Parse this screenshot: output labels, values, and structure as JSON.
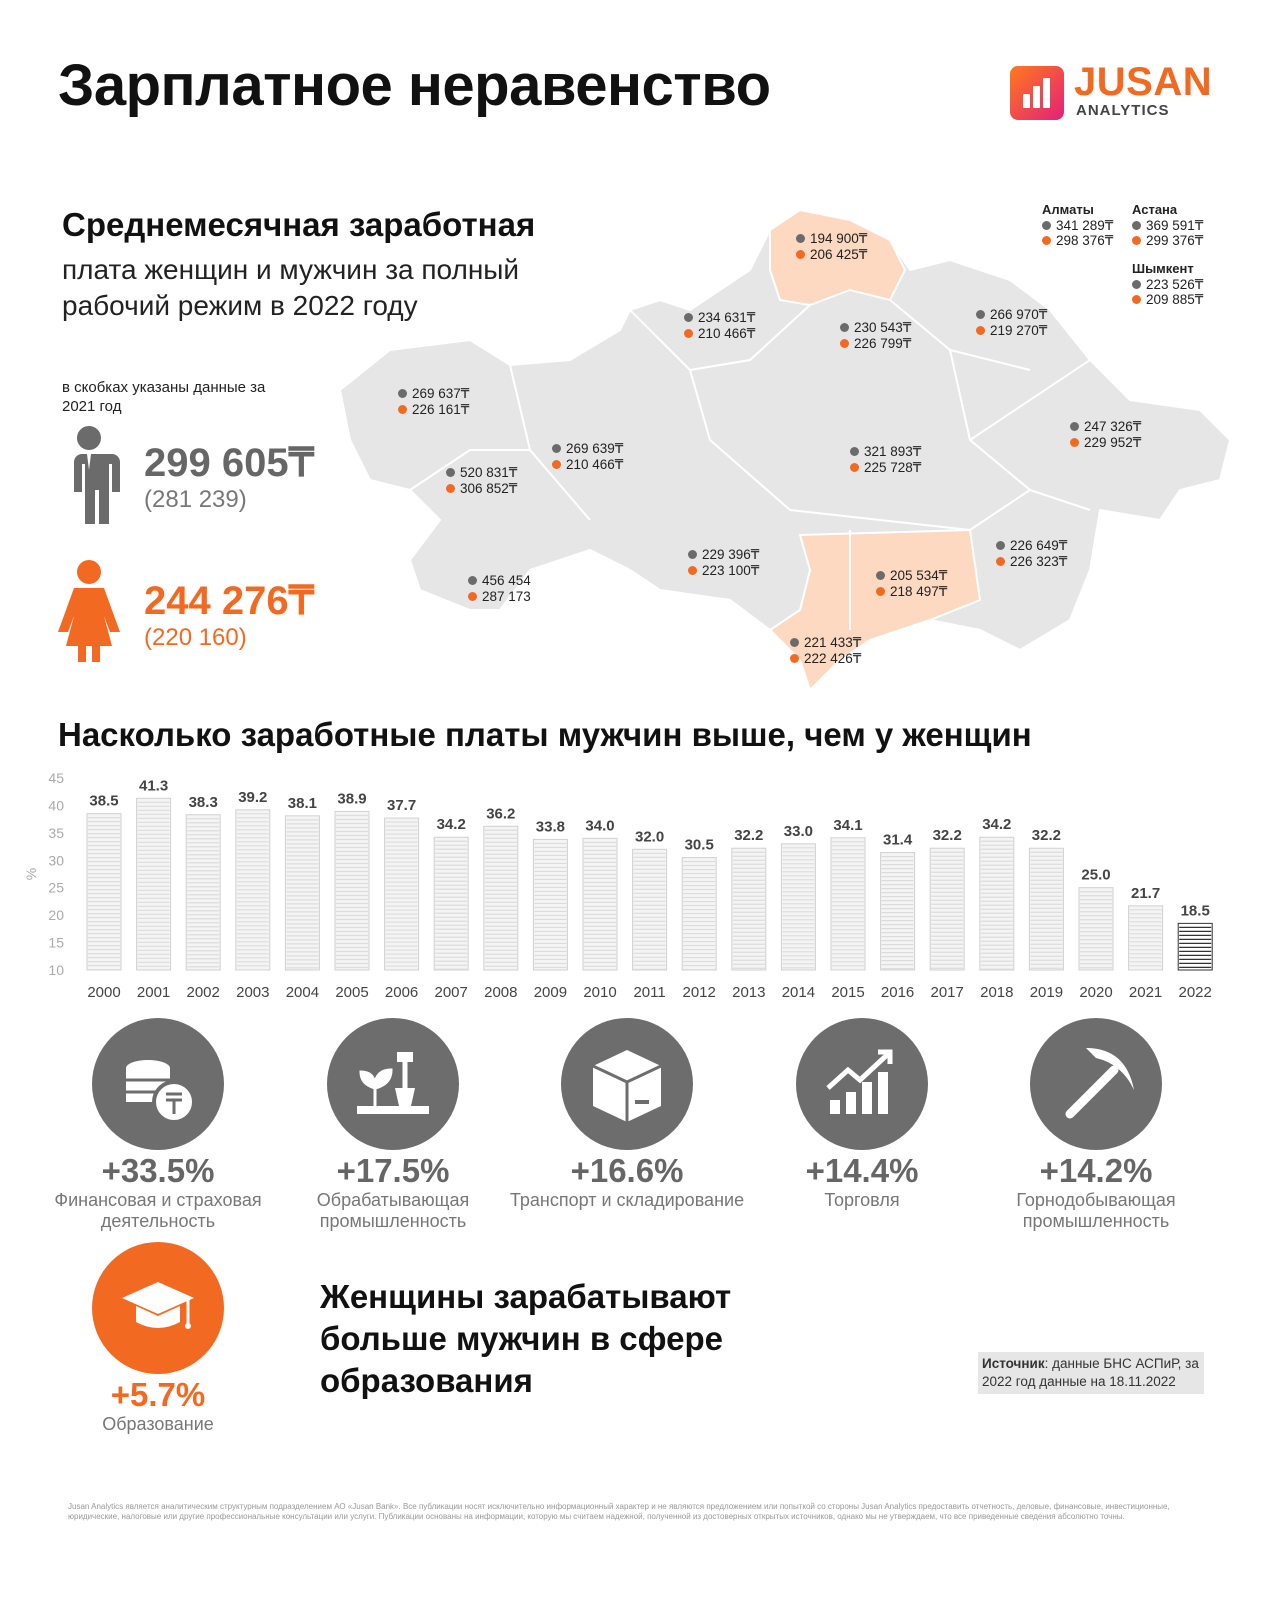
{
  "title": "Зарплатное неравенство",
  "logo": {
    "name": "JUSAN",
    "sub": "ANALYTICS"
  },
  "subtitle_bold": "Среднемесячная заработная",
  "subtitle_rest": "плата женщин и мужчин за полный рабочий режим в 2022 году",
  "note": "в скобках указаны данные за 2021 год",
  "men": {
    "value": "299 605₸",
    "prev": "(281 239)"
  },
  "women": {
    "value": "244 276₸",
    "prev": "(220 160)"
  },
  "cities": [
    {
      "name": "Алматы",
      "men": "341 289₸",
      "women": "298 376₸"
    },
    {
      "name": "Астана",
      "men": "369 591₸",
      "women": "299 376₸"
    },
    {
      "name": "Шымкент",
      "men": "223 526₸",
      "women": "209 885₸"
    }
  ],
  "regions": [
    {
      "men": "194 900₸",
      "women": "206 425₸"
    },
    {
      "men": "234 631₸",
      "women": "210 466₸"
    },
    {
      "men": "230 543₸",
      "women": "226 799₸"
    },
    {
      "men": "266 970₸",
      "women": "219 270₸"
    },
    {
      "men": "269 637₸",
      "women": "226 161₸"
    },
    {
      "men": "269 639₸",
      "women": "210 466₸"
    },
    {
      "men": "321 893₸",
      "women": "225 728₸"
    },
    {
      "men": "247 326₸",
      "women": "229 952₸"
    },
    {
      "men": "520 831₸",
      "women": "306 852₸"
    },
    {
      "men": "456 454",
      "women": "287 173"
    },
    {
      "men": "229 396₸",
      "women": "223 100₸"
    },
    {
      "men": "226 649₸",
      "women": "226 323₸"
    },
    {
      "men": "205 534₸",
      "women": "218 497₸"
    },
    {
      "men": "221 433₸",
      "women": "222 426₸"
    }
  ],
  "section2_title": "Насколько заработные платы мужчин выше, чем у женщин",
  "chart_data": {
    "type": "bar",
    "ylabel": "%",
    "ylim": [
      10,
      45
    ],
    "yticks": [
      45,
      40,
      35,
      30,
      25,
      20,
      15,
      10
    ],
    "categories": [
      "2000",
      "2001",
      "2002",
      "2003",
      "2004",
      "2005",
      "2006",
      "2007",
      "2008",
      "2009",
      "2010",
      "2011",
      "2012",
      "2013",
      "2014",
      "2015",
      "2016",
      "2017",
      "2018",
      "2019",
      "2020",
      "2021",
      "2022"
    ],
    "values": [
      38.5,
      41.3,
      38.3,
      39.2,
      38.1,
      38.9,
      37.7,
      34.2,
      36.2,
      33.8,
      34.0,
      32.0,
      30.5,
      32.2,
      33.0,
      34.1,
      31.4,
      32.2,
      34.2,
      32.2,
      25.0,
      21.7,
      18.5
    ],
    "value_labels": [
      "38.5",
      "41.3",
      "38.3",
      "39.2",
      "38.1",
      "38.9",
      "37.7",
      "34.2",
      "36.2",
      "33.8",
      "34.0",
      "32.0",
      "30.5",
      "32.2",
      "33.0",
      "34.1",
      "31.4",
      "32.2",
      "34.2",
      "32.2",
      "25.0",
      "21.7",
      "18.5"
    ]
  },
  "industries": [
    {
      "pct": "+33.5%",
      "label": "Финансовая и страховая деятельность",
      "icon": "coins-tenge-icon"
    },
    {
      "pct": "+17.5%",
      "label": "Обрабатывающая промышленность",
      "icon": "shovel-plant-icon"
    },
    {
      "pct": "+16.6%",
      "label": "Транспорт и складирование",
      "icon": "box-icon"
    },
    {
      "pct": "+14.4%",
      "label": "Торговля",
      "icon": "growth-chart-icon"
    },
    {
      "pct": "+14.2%",
      "label": "Горнодобывающая промышленность",
      "icon": "pickaxe-icon"
    }
  ],
  "education": {
    "pct": "+5.7%",
    "label": "Образование",
    "icon": "graduation-cap-icon"
  },
  "education_text": "Женщины зарабатывают больше мужчин в сфере образования",
  "source_label": "Источник",
  "source_text": ": данные БНС АСПиР, за 2022 год данные на 18.11.2022",
  "footer": "Jusan Analytics является аналитическим структурным подразделением АО «Jusan Bank». Все публикации носят исключительно информационный характер и не являются предложением или попыткой со стороны Jusan Analytics предоставить отчетность, деловые, финансовые, инвестиционные, юридические, налоговые или другие профессиональные консультации или услуги. Публикации основаны на информации, которую мы считаем надежной, полученной из достоверных открытых источников, однако мы не утверждаем, что все приведенные сведения абсолютно точны.",
  "colors": {
    "accent": "#f26a21",
    "gray": "#6b6b6b",
    "map": "#e6e6e6",
    "map_highlight": "#fcd9c0"
  }
}
